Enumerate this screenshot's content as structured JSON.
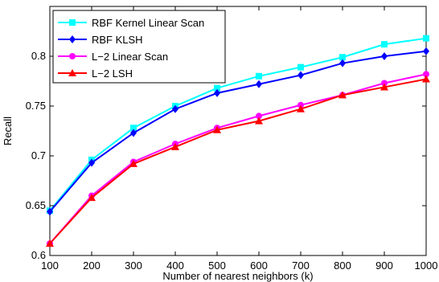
{
  "chart_data": {
    "type": "line",
    "title": "",
    "xlabel": "Number of nearest neighbors (k)",
    "ylabel": "Recall",
    "x": [
      100,
      200,
      300,
      400,
      500,
      600,
      700,
      800,
      900,
      1000
    ],
    "xlim": [
      100,
      1000
    ],
    "ylim": [
      0.6,
      0.85
    ],
    "x_ticks": [
      "100",
      "200",
      "300",
      "400",
      "500",
      "600",
      "700",
      "800",
      "900",
      "1000"
    ],
    "y_ticks": [
      {
        "value": 0.6,
        "label": "0.6"
      },
      {
        "value": 0.65,
        "label": "0.65"
      },
      {
        "value": 0.7,
        "label": "0.7"
      },
      {
        "value": 0.75,
        "label": "0.75"
      },
      {
        "value": 0.8,
        "label": "0.8"
      }
    ],
    "grid": false,
    "legend_position": "top-left",
    "series": [
      {
        "name": "RBF Kernel Linear Scan",
        "color": "#00ffff",
        "marker": "square",
        "values": [
          0.645,
          0.696,
          0.728,
          0.75,
          0.768,
          0.78,
          0.789,
          0.799,
          0.812,
          0.818
        ]
      },
      {
        "name": "RBF KLSH",
        "color": "#0000ff",
        "marker": "diamond",
        "values": [
          0.644,
          0.693,
          0.723,
          0.747,
          0.763,
          0.772,
          0.781,
          0.793,
          0.8,
          0.805
        ]
      },
      {
        "name": "L−2 Linear Scan",
        "color": "#ff00ff",
        "marker": "circle",
        "values": [
          0.612,
          0.66,
          0.694,
          0.712,
          0.728,
          0.74,
          0.751,
          0.761,
          0.773,
          0.782
        ]
      },
      {
        "name": "L−2 LSH",
        "color": "#ff0000",
        "marker": "triangle",
        "values": [
          0.612,
          0.658,
          0.692,
          0.709,
          0.726,
          0.735,
          0.747,
          0.761,
          0.769,
          0.777
        ]
      }
    ]
  }
}
